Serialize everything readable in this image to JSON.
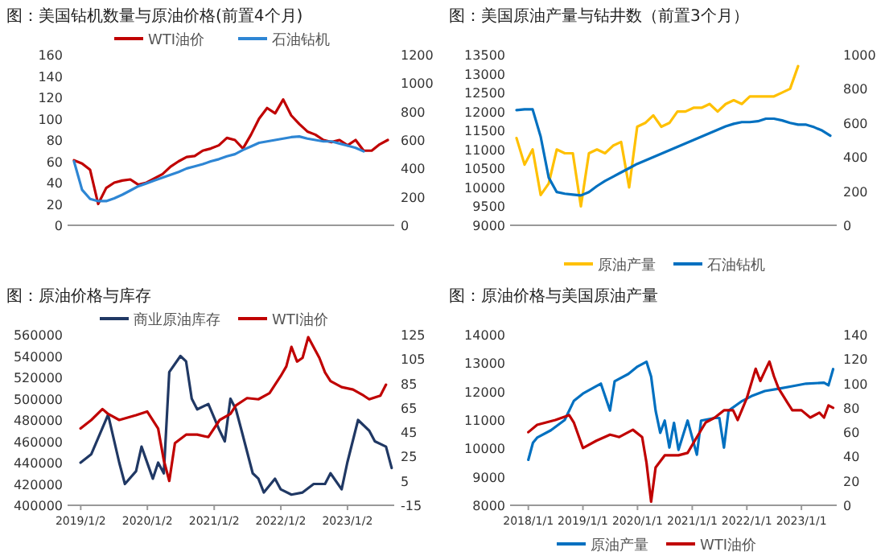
{
  "chart_data": [
    {
      "type": "line",
      "title": "图：美国钻机数量与原油价格(前置4个月)",
      "legend": "top",
      "categories": [
        null,
        null,
        null,
        null,
        null,
        null,
        null,
        null,
        null,
        null,
        null,
        null,
        null,
        null,
        null,
        null,
        null,
        null,
        null,
        null,
        null,
        null,
        null,
        null,
        null,
        null,
        null,
        null,
        null,
        null,
        null,
        null,
        null,
        null,
        null,
        null,
        null,
        null,
        null,
        null
      ],
      "ylim": [
        0,
        160
      ],
      "yticks": [
        0,
        20,
        40,
        60,
        80,
        100,
        120,
        140,
        160
      ],
      "y2lim": [
        0,
        1200
      ],
      "y2ticks": [
        0,
        200,
        400,
        600,
        800,
        1000,
        1200
      ],
      "series": [
        {
          "name": "WTI油价",
          "color": "#c00000",
          "values": [
            61,
            58,
            52,
            20,
            35,
            40,
            42,
            43,
            38,
            40,
            44,
            48,
            55,
            60,
            64,
            65,
            70,
            72,
            75,
            82,
            80,
            72,
            85,
            100,
            110,
            105,
            118,
            103,
            95,
            88,
            85,
            80,
            78,
            80,
            75,
            80,
            70,
            70,
            76,
            80
          ]
        },
        {
          "name": "石油钻机",
          "color": "#2e86d4",
          "axis": "y2",
          "values": [
            450,
            250,
            185,
            170,
            170,
            190,
            215,
            245,
            275,
            295,
            315,
            335,
            355,
            375,
            400,
            415,
            430,
            450,
            465,
            485,
            500,
            530,
            555,
            580,
            590,
            600,
            610,
            620,
            625,
            610,
            600,
            590,
            590,
            575,
            560,
            545,
            520,
            null,
            null,
            null
          ]
        }
      ]
    },
    {
      "type": "line",
      "title": "图：美国原油产量与钻井数（前置3个月）",
      "legend": "bottom",
      "categories": [
        null,
        null,
        null,
        null,
        null,
        null,
        null,
        null,
        null,
        null,
        null,
        null,
        null,
        null,
        null,
        null,
        null,
        null,
        null,
        null,
        null,
        null,
        null,
        null,
        null,
        null,
        null,
        null,
        null,
        null,
        null,
        null,
        null,
        null,
        null,
        null,
        null,
        null,
        null,
        null
      ],
      "ylim": [
        9000,
        13500
      ],
      "yticks": [
        9000,
        9500,
        10000,
        10500,
        11000,
        11500,
        12000,
        12500,
        13000,
        13500
      ],
      "y2lim": [
        0,
        1000
      ],
      "y2ticks": [
        0,
        200,
        400,
        600,
        800,
        1000
      ],
      "series": [
        {
          "name": "原油产量",
          "color": "#ffc000",
          "values": [
            11300,
            10600,
            11000,
            9800,
            10100,
            11000,
            10900,
            10900,
            9500,
            10900,
            11000,
            10900,
            11100,
            11200,
            10000,
            11600,
            11700,
            11900,
            11600,
            11700,
            12000,
            12000,
            12100,
            12100,
            12200,
            12000,
            12200,
            12300,
            12200,
            12400,
            12400,
            12400,
            12400,
            12500,
            12600,
            13200,
            null,
            null,
            null,
            null
          ]
        },
        {
          "name": "石油钻机",
          "color": "#0070c0",
          "axis": "y2",
          "values": [
            675,
            680,
            680,
            520,
            280,
            195,
            185,
            180,
            175,
            195,
            230,
            260,
            285,
            310,
            335,
            360,
            380,
            400,
            420,
            440,
            460,
            480,
            500,
            520,
            540,
            560,
            580,
            595,
            605,
            605,
            610,
            625,
            625,
            615,
            600,
            590,
            590,
            575,
            555,
            525
          ]
        }
      ]
    },
    {
      "type": "line",
      "title": "图：原油价格与库存",
      "legend": "top",
      "xlim": [
        "2018-10-22",
        "2023-09-15"
      ],
      "xticks": [
        {
          "value": "2019-01-02",
          "label": "2019/1/2"
        },
        {
          "value": "2020-01-02",
          "label": "2020/1/2"
        },
        {
          "value": "2021-01-02",
          "label": "2021/1/2"
        },
        {
          "value": "2022-01-02",
          "label": "2022/1/2"
        },
        {
          "value": "2023-01-02",
          "label": "2023/1/2"
        }
      ],
      "ylim": [
        400000,
        560000
      ],
      "yticks": [
        400000,
        420000,
        440000,
        460000,
        480000,
        500000,
        520000,
        540000,
        560000
      ],
      "y2lim": [
        -15,
        125
      ],
      "y2ticks": [
        {
          "value": -15,
          "label": "-15"
        },
        5,
        25,
        45,
        65,
        85,
        105,
        125
      ],
      "series": [
        {
          "name": "商业原油库存",
          "color": "#203864",
          "x": [
            "2019-01",
            "2019-03",
            "2019-06",
            "2019-08",
            "2019-09",
            "2019-11",
            "2019-12",
            "2020-02",
            "2020-03",
            "2020-04",
            "2020-05",
            "2020-07",
            "2020-08",
            "2020-09",
            "2020-10",
            "2020-12",
            "2021-02",
            "2021-03",
            "2021-04",
            "2021-05",
            "2021-06",
            "2021-08",
            "2021-09",
            "2021-10",
            "2021-12",
            "2022-01",
            "2022-03",
            "2022-05",
            "2022-07",
            "2022-09",
            "2022-10",
            "2022-12",
            "2023-01",
            "2023-03",
            "2023-05",
            "2023-06",
            "2023-08",
            "2023-09"
          ],
          "values": [
            440000,
            448000,
            485000,
            440000,
            420000,
            432000,
            455000,
            425000,
            440000,
            430000,
            525000,
            540000,
            535000,
            500000,
            490000,
            495000,
            470000,
            460000,
            500000,
            490000,
            470000,
            430000,
            425000,
            412000,
            425000,
            415000,
            410000,
            412000,
            420000,
            420000,
            430000,
            415000,
            440000,
            480000,
            470000,
            460000,
            455000,
            435000
          ]
        },
        {
          "name": "WTI油价",
          "color": "#c00000",
          "axis": "y2",
          "x": [
            "2019-01",
            "2019-03",
            "2019-05",
            "2019-06",
            "2019-08",
            "2019-11",
            "2020-01",
            "2020-03",
            "2020-04",
            "2020-05",
            "2020-06",
            "2020-08",
            "2020-10",
            "2020-12",
            "2021-02",
            "2021-04",
            "2021-05",
            "2021-07",
            "2021-09",
            "2021-11",
            "2022-01",
            "2022-02",
            "2022-03",
            "2022-04",
            "2022-05",
            "2022-06",
            "2022-08",
            "2022-09",
            "2022-10",
            "2022-12",
            "2023-02",
            "2023-04",
            "2023-05",
            "2023-07",
            "2023-08"
          ],
          "values": [
            48,
            55,
            64,
            60,
            55,
            59,
            62,
            48,
            22,
            5,
            36,
            43,
            43,
            41,
            55,
            60,
            67,
            73,
            72,
            77,
            91,
            99,
            115,
            103,
            106,
            123,
            106,
            94,
            87,
            82,
            80,
            75,
            72,
            75,
            84
          ]
        }
      ]
    },
    {
      "type": "line",
      "title": "图：原油价格与美国原油产量",
      "legend": "bottom",
      "xlim": [
        "2017-09-01",
        "2023-08-25"
      ],
      "xticks": [
        {
          "value": "2018-01-01",
          "label": "2018/1/1"
        },
        {
          "value": "2019-01-01",
          "label": "2019/1/1"
        },
        {
          "value": "2020-01-01",
          "label": "2020/1/1"
        },
        {
          "value": "2021-01-01",
          "label": "2021/1/1"
        },
        {
          "value": "2022-01-01",
          "label": "2022/1/1"
        },
        {
          "value": "2023-01-01",
          "label": "2023/1/1"
        }
      ],
      "ylim": [
        8000,
        14000
      ],
      "yticks": [
        8000,
        9000,
        10000,
        11000,
        12000,
        13000,
        14000
      ],
      "y2lim": [
        0,
        140
      ],
      "y2ticks": [
        0,
        20,
        40,
        60,
        80,
        100,
        120,
        140
      ],
      "series": [
        {
          "name": "原油产量",
          "color": "#0070c0",
          "x": [
            "2018-01",
            "2018-02",
            "2018-03",
            "2018-06",
            "2018-09",
            "2018-11",
            "2019-01",
            "2019-04",
            "2019-05",
            "2019-07",
            "2019-08",
            "2019-11",
            "2020-01",
            "2020-03",
            "2020-04",
            "2020-05",
            "2020-06",
            "2020-07",
            "2020-08",
            "2020-09",
            "2020-10",
            "2020-12",
            "2021-02",
            "2021-03",
            "2021-06",
            "2021-07",
            "2021-08",
            "2021-09",
            "2021-12",
            "2022-02",
            "2022-05",
            "2022-08",
            "2022-11",
            "2023-02",
            "2023-06",
            "2023-07",
            "2023-08"
          ],
          "values": [
            9600,
            10200,
            10380,
            10640,
            11000,
            11670,
            11930,
            12190,
            12280,
            11330,
            12360,
            12620,
            12880,
            13050,
            12530,
            11330,
            10550,
            10980,
            10030,
            10900,
            9950,
            10980,
            9780,
            10980,
            11070,
            11070,
            10030,
            11330,
            11670,
            11840,
            12020,
            12100,
            12190,
            12280,
            12310,
            12220,
            12790
          ]
        },
        {
          "name": "WTI油价",
          "color": "#c00000",
          "axis": "y2",
          "x": [
            "2018-01",
            "2018-03",
            "2018-05",
            "2018-07",
            "2018-10",
            "2018-11",
            "2019-01",
            "2019-04",
            "2019-07",
            "2019-09",
            "2019-12",
            "2020-02",
            "2020-03",
            "2020-04",
            "2020-05",
            "2020-07",
            "2020-10",
            "2020-12",
            "2021-02",
            "2021-04",
            "2021-06",
            "2021-08",
            "2021-10",
            "2021-11",
            "2022-01",
            "2022-03",
            "2022-04",
            "2022-05",
            "2022-06",
            "2022-07",
            "2022-08",
            "2022-10",
            "2022-11",
            "2023-01",
            "2023-03",
            "2023-05",
            "2023-06",
            "2023-07",
            "2023-08"
          ],
          "values": [
            60,
            66,
            68,
            70,
            74,
            68,
            47,
            53,
            58,
            56,
            62,
            56,
            35,
            3,
            31,
            41,
            41,
            43,
            56,
            68,
            72,
            78,
            78,
            70,
            88,
            112,
            102,
            110,
            118,
            106,
            96,
            84,
            78,
            78,
            72,
            76,
            72,
            82,
            80
          ]
        }
      ]
    }
  ]
}
